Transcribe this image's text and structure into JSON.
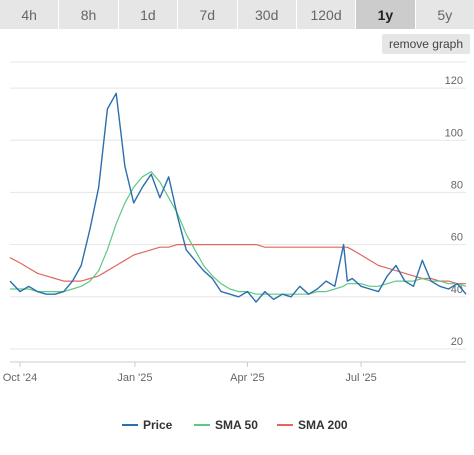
{
  "tabs": [
    "4h",
    "8h",
    "1d",
    "7d",
    "30d",
    "120d",
    "1y",
    "5y"
  ],
  "active_tab": "1y",
  "remove_graph_label": "remove graph",
  "colors": {
    "price": "#2c6fad",
    "sma50": "#5cc983",
    "sma200": "#e0675f",
    "grid": "#e6e6e6"
  },
  "chart_data": {
    "type": "line",
    "x_ticks": [
      "Oct '24",
      "Jan '25",
      "Apr '25",
      "Jul '25"
    ],
    "y_ticks": [
      20,
      40,
      60,
      80,
      100,
      120
    ],
    "ylim": [
      15,
      130
    ],
    "legend": [
      "Price",
      "SMA 50",
      "SMA 200"
    ],
    "legend_position": "bottom",
    "x": [
      "2024-09-23",
      "2024-10-01",
      "2024-10-08",
      "2024-10-15",
      "2024-10-22",
      "2024-10-29",
      "2024-11-05",
      "2024-11-12",
      "2024-11-19",
      "2024-11-26",
      "2024-12-03",
      "2024-12-10",
      "2024-12-17",
      "2024-12-24",
      "2024-12-31",
      "2025-01-07",
      "2025-01-14",
      "2025-01-21",
      "2025-01-28",
      "2025-02-04",
      "2025-02-11",
      "2025-02-18",
      "2025-02-25",
      "2025-03-04",
      "2025-03-11",
      "2025-03-18",
      "2025-03-25",
      "2025-04-01",
      "2025-04-08",
      "2025-04-15",
      "2025-04-22",
      "2025-04-29",
      "2025-05-06",
      "2025-05-13",
      "2025-05-20",
      "2025-05-27",
      "2025-06-03",
      "2025-06-10",
      "2025-06-17",
      "2025-06-20",
      "2025-06-24",
      "2025-07-01",
      "2025-07-08",
      "2025-07-15",
      "2025-07-22",
      "2025-07-29",
      "2025-08-05",
      "2025-08-12",
      "2025-08-19",
      "2025-08-26",
      "2025-09-02",
      "2025-09-09",
      "2025-09-16",
      "2025-09-23"
    ],
    "series": [
      {
        "name": "Price",
        "color": "#2c6fad",
        "values": [
          46,
          42,
          44,
          42,
          41,
          41,
          42,
          46,
          52,
          66,
          82,
          112,
          118,
          90,
          76,
          82,
          87,
          78,
          86,
          71,
          58,
          54,
          50,
          47,
          42,
          41,
          40,
          42,
          38,
          42,
          39,
          41,
          40,
          44,
          41,
          43,
          46,
          44,
          60,
          46,
          47,
          44,
          43,
          42,
          48,
          52,
          46,
          44,
          54,
          46,
          44,
          43,
          45,
          41
        ]
      },
      {
        "name": "SMA 50",
        "color": "#5cc983",
        "values": [
          43,
          43,
          43,
          42,
          42,
          42,
          42,
          43,
          44,
          46,
          50,
          58,
          68,
          76,
          82,
          86,
          88,
          84,
          78,
          72,
          64,
          58,
          52,
          48,
          45,
          43,
          42,
          42,
          41,
          41,
          41,
          41,
          41,
          41,
          41,
          42,
          42,
          43,
          44,
          45,
          45,
          45,
          44,
          44,
          45,
          46,
          46,
          46,
          47,
          46,
          46,
          45,
          45,
          44
        ]
      },
      {
        "name": "SMA 200",
        "color": "#e0675f",
        "values": [
          55,
          53,
          51,
          49,
          48,
          47,
          46,
          46,
          46,
          47,
          48,
          50,
          52,
          54,
          56,
          57,
          58,
          59,
          59,
          60,
          60,
          60,
          60,
          60,
          60,
          60,
          60,
          60,
          60,
          59,
          59,
          59,
          59,
          59,
          59,
          59,
          59,
          59,
          59,
          59,
          58,
          56,
          54,
          52,
          51,
          50,
          49,
          48,
          47,
          47,
          46,
          46,
          45,
          45
        ]
      }
    ]
  }
}
